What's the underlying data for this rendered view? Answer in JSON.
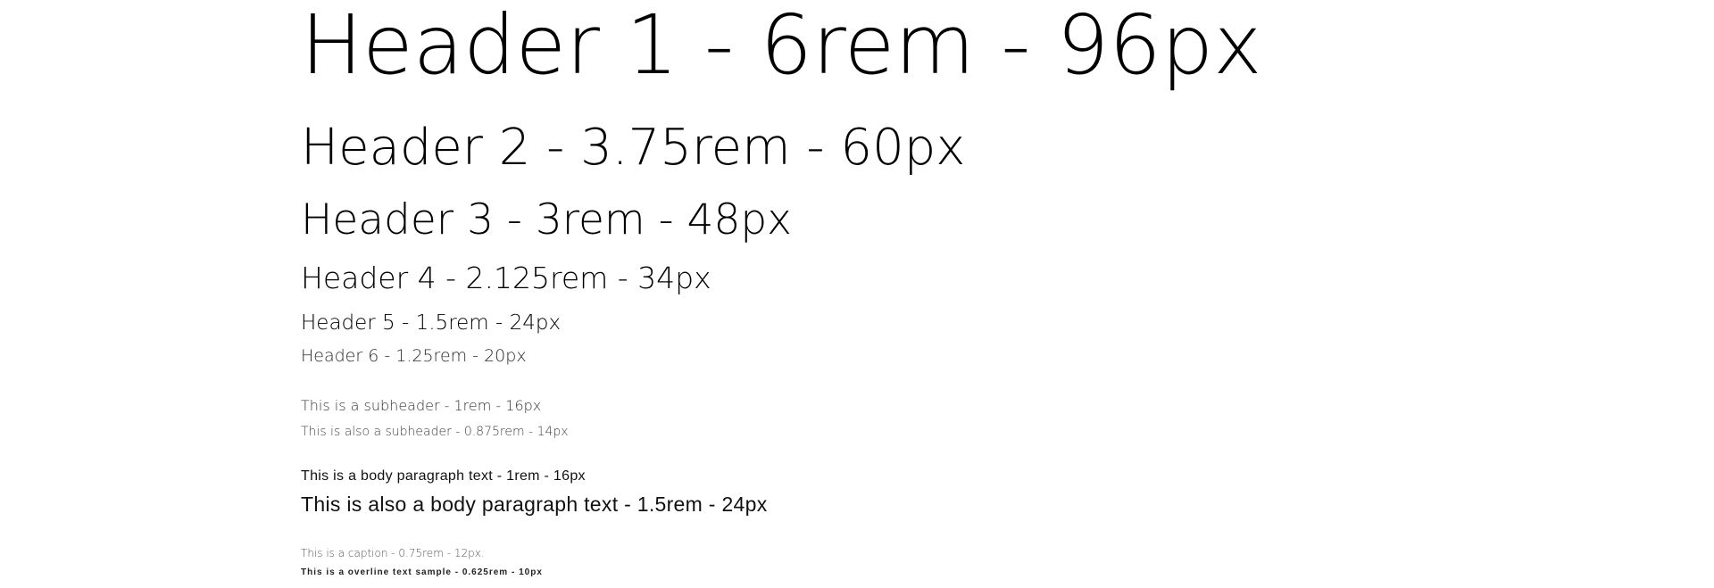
{
  "typography": {
    "h1": "Header 1 - 6rem - 96px",
    "h2": "Header 2 - 3.75rem - 60px",
    "h3": "Header 3 - 3rem - 48px",
    "h4": "Header 4 - 2.125rem - 34px",
    "h5": "Header 5 - 1.5rem - 24px",
    "h6": "Header 6 - 1.25rem - 20px",
    "subheader1": "This is a subheader - 1rem - 16px",
    "subheader2": "This is also a subheader - 0.875rem - 14px",
    "body1": "This is a body paragraph text - 1rem - 16px",
    "body2": "This is also a body paragraph text - 1.5rem - 24px",
    "caption": "This is a caption - 0.75rem - 12px.",
    "overline": "This is a overline text sample - 0.625rem - 10px"
  },
  "colors": {
    "background": "#ffffff",
    "text": "#000000"
  }
}
